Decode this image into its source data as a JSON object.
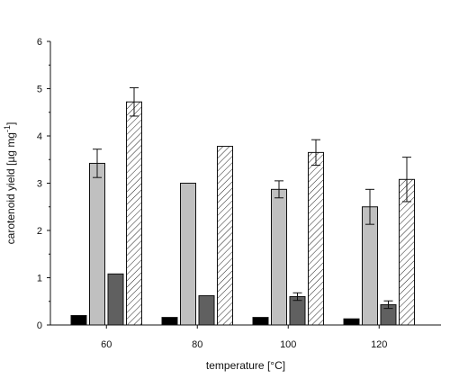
{
  "chart_data": {
    "type": "bar",
    "title": "",
    "xlabel": "temperature  [°C]",
    "ylabel": "carotenoid yield [µg mg",
    "ylabel_sup": "-1",
    "ylabel_close": "]",
    "categories": [
      "60",
      "80",
      "100",
      "120"
    ],
    "ylim": [
      0,
      6
    ],
    "yticks": [
      0,
      1,
      2,
      3,
      4,
      5,
      6
    ],
    "grid": false,
    "legend": "none",
    "series": [
      {
        "fill": "#000000",
        "pattern": "solid",
        "values": [
          0.2,
          0.16,
          0.16,
          0.13
        ],
        "errors": [
          0.0,
          0.0,
          0.0,
          0.0
        ]
      },
      {
        "fill": "#c0c0c0",
        "pattern": "solid",
        "values": [
          3.42,
          3.0,
          2.87,
          2.5
        ],
        "errors": [
          0.3,
          0.0,
          0.18,
          0.37
        ]
      },
      {
        "fill": "#606060",
        "pattern": "solid",
        "values": [
          1.08,
          0.62,
          0.6,
          0.43
        ],
        "errors": [
          0.0,
          0.0,
          0.08,
          0.08
        ]
      },
      {
        "fill": "#ffffff",
        "pattern": "hatch",
        "values": [
          4.72,
          3.78,
          3.65,
          3.08
        ],
        "errors": [
          0.3,
          0.0,
          0.27,
          0.47
        ]
      }
    ]
  }
}
